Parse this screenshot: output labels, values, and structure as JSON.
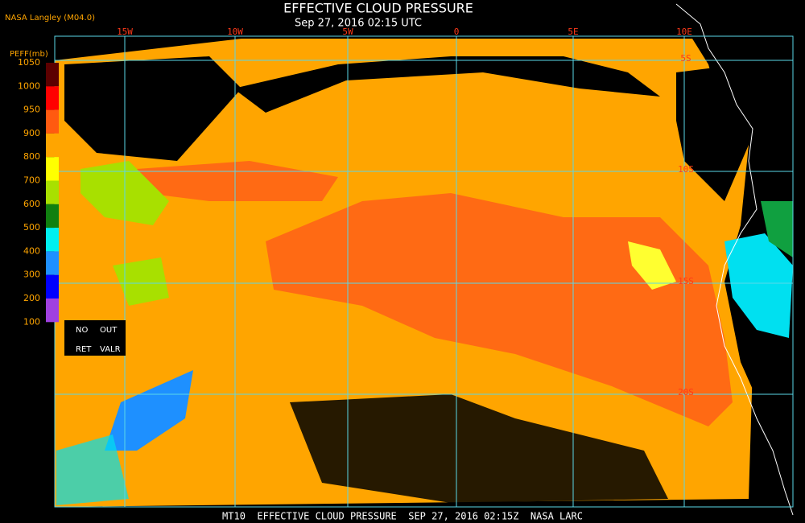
{
  "header": {
    "title": "EFFECTIVE CLOUD PRESSURE",
    "subtitle": "Sep 27, 2016 02:15 UTC",
    "credit": "NASA Langley (M04.0)"
  },
  "legend": {
    "title": "PEFF(mb)",
    "ticks": [
      1050,
      1000,
      950,
      900,
      800,
      700,
      600,
      500,
      400,
      300,
      200,
      100
    ],
    "colors": [
      "#5c0000",
      "#ff0000",
      "#ff5a10",
      "#ffa500",
      "#ffff00",
      "#a8e000",
      "#108010",
      "#00f0f0",
      "#1e90ff",
      "#0000ff",
      "#a040e0"
    ],
    "labels": [
      "NO",
      "OUT",
      "RET",
      "VALR"
    ]
  },
  "grid": {
    "longitudes": [
      "15W",
      "10W",
      "5W",
      "0",
      "5E",
      "10E"
    ],
    "latitudes": [
      "5S",
      "10S",
      "15S",
      "20S"
    ]
  },
  "footer": "MT10  EFFECTIVE CLOUD PRESSURE  SEP 27, 2016 02:15Z  NASA LARC"
}
